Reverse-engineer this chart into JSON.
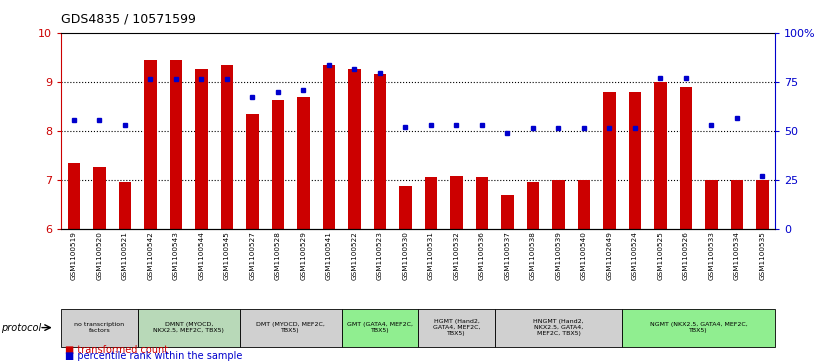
{
  "title": "GDS4835 / 10571599",
  "samples": [
    "GSM1100519",
    "GSM1100520",
    "GSM1100521",
    "GSM1100542",
    "GSM1100543",
    "GSM1100544",
    "GSM1100545",
    "GSM1100527",
    "GSM1100528",
    "GSM1100529",
    "GSM1100541",
    "GSM1100522",
    "GSM1100523",
    "GSM1100530",
    "GSM1100531",
    "GSM1100532",
    "GSM1100536",
    "GSM1100537",
    "GSM1100538",
    "GSM1100539",
    "GSM1100540",
    "GSM1102649",
    "GSM1100524",
    "GSM1100525",
    "GSM1100526",
    "GSM1100533",
    "GSM1100534",
    "GSM1100535"
  ],
  "bar_values": [
    7.35,
    7.25,
    6.95,
    9.45,
    9.45,
    9.25,
    9.35,
    8.35,
    8.62,
    8.68,
    9.35,
    9.25,
    9.15,
    6.88,
    7.05,
    7.08,
    7.05,
    6.68,
    6.95,
    7.0,
    7.0,
    8.78,
    8.78,
    9.0,
    8.9,
    7.0,
    7.0,
    7.0
  ],
  "percentile_values": [
    8.22,
    8.22,
    8.12,
    9.05,
    9.05,
    9.05,
    9.05,
    8.68,
    8.78,
    8.82,
    9.35,
    9.25,
    9.18,
    8.08,
    8.12,
    8.12,
    8.12,
    7.95,
    8.05,
    8.05,
    8.05,
    8.05,
    8.05,
    9.08,
    9.08,
    8.12,
    8.25,
    7.08
  ],
  "groups": [
    {
      "label": "no transcription\nfactors",
      "start": 0,
      "end": 3,
      "color": "#d0d0d0"
    },
    {
      "label": "DMNT (MYOCD,\nNKX2.5, MEF2C, TBX5)",
      "start": 3,
      "end": 7,
      "color": "#b8d9b8"
    },
    {
      "label": "DMT (MYOCD, MEF2C,\nTBX5)",
      "start": 7,
      "end": 11,
      "color": "#d0d0d0"
    },
    {
      "label": "GMT (GATA4, MEF2C,\nTBX5)",
      "start": 11,
      "end": 14,
      "color": "#90ee90"
    },
    {
      "label": "HGMT (Hand2,\nGATA4, MEF2C,\nTBX5)",
      "start": 14,
      "end": 17,
      "color": "#d0d0d0"
    },
    {
      "label": "HNGMT (Hand2,\nNKX2.5, GATA4,\nMEF2C, TBX5)",
      "start": 17,
      "end": 22,
      "color": "#d0d0d0"
    },
    {
      "label": "NGMT (NKX2.5, GATA4, MEF2C,\nTBX5)",
      "start": 22,
      "end": 28,
      "color": "#90ee90"
    }
  ],
  "ylim": [
    6,
    10
  ],
  "yticks": [
    6,
    7,
    8,
    9,
    10
  ],
  "y2labels": [
    "0",
    "25",
    "50",
    "75",
    "100%"
  ],
  "bar_color": "#cc0000",
  "dot_color": "#0000cc",
  "protocol_label": "protocol"
}
